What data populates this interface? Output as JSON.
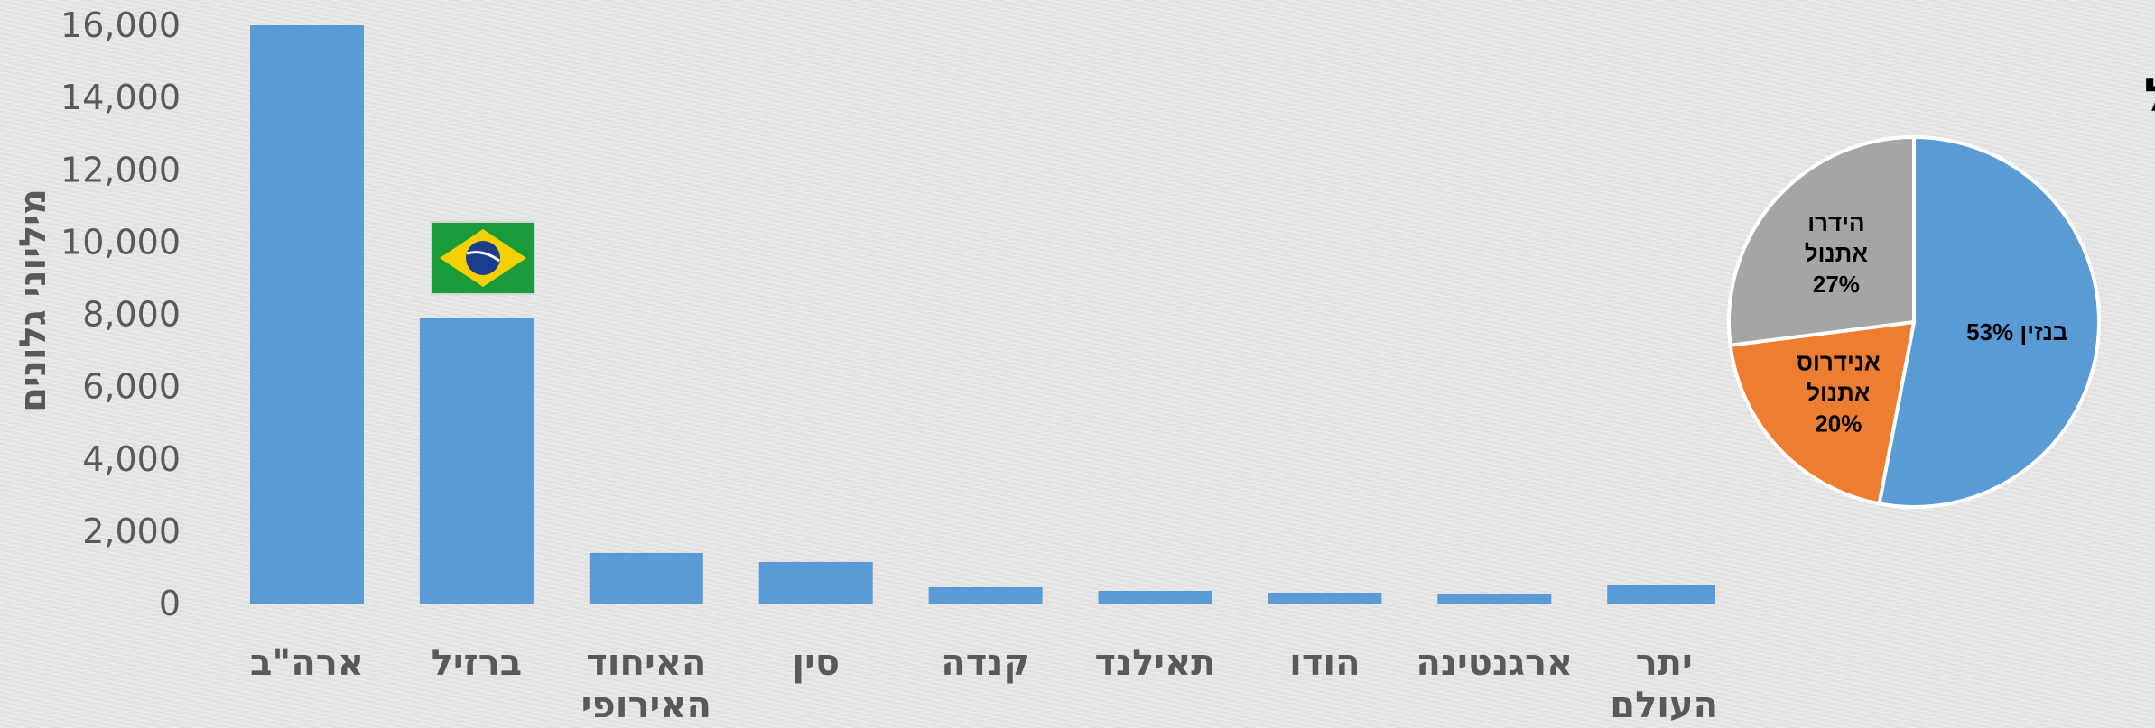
{
  "chart_data": [
    {
      "type": "bar",
      "ylabel": "מיליוני גלונים",
      "ylim": [
        0,
        16000
      ],
      "yticks": [
        0,
        2000,
        4000,
        6000,
        8000,
        10000,
        12000,
        14000,
        16000
      ],
      "ytick_labels": [
        "0",
        "2,000",
        "4,000",
        "6,000",
        "8,000",
        "10,000",
        "12,000",
        "14,000",
        "16,000"
      ],
      "categories": [
        [
          "ארה\"ב"
        ],
        [
          "ברזיל"
        ],
        [
          "האיחוד",
          "האירופי"
        ],
        [
          "סין"
        ],
        [
          "קנדה"
        ],
        [
          "תאילנד"
        ],
        [
          "הודו"
        ],
        [
          "ארגנטינה"
        ],
        [
          "יתר",
          "העולם"
        ]
      ],
      "values": [
        16000,
        7900,
        1400,
        1150,
        450,
        350,
        300,
        250,
        500
      ],
      "color": "#5b9bd5",
      "annotation_icon": "brazil-flag-icon",
      "annotation_category_index": 1
    },
    {
      "type": "pie",
      "title": "שימוש בדלקים בברזיל",
      "slices": [
        {
          "label": [
            "בנזין 53%"
          ],
          "value": 53,
          "color": "#5b9bd5"
        },
        {
          "label": [
            "אנידרוס",
            "אתנול",
            "20%"
          ],
          "value": 20,
          "color": "#ed7d31"
        },
        {
          "label": [
            "הידרו",
            "אתנול",
            "27%"
          ],
          "value": 27,
          "color": "#a5a5a5"
        }
      ]
    }
  ]
}
